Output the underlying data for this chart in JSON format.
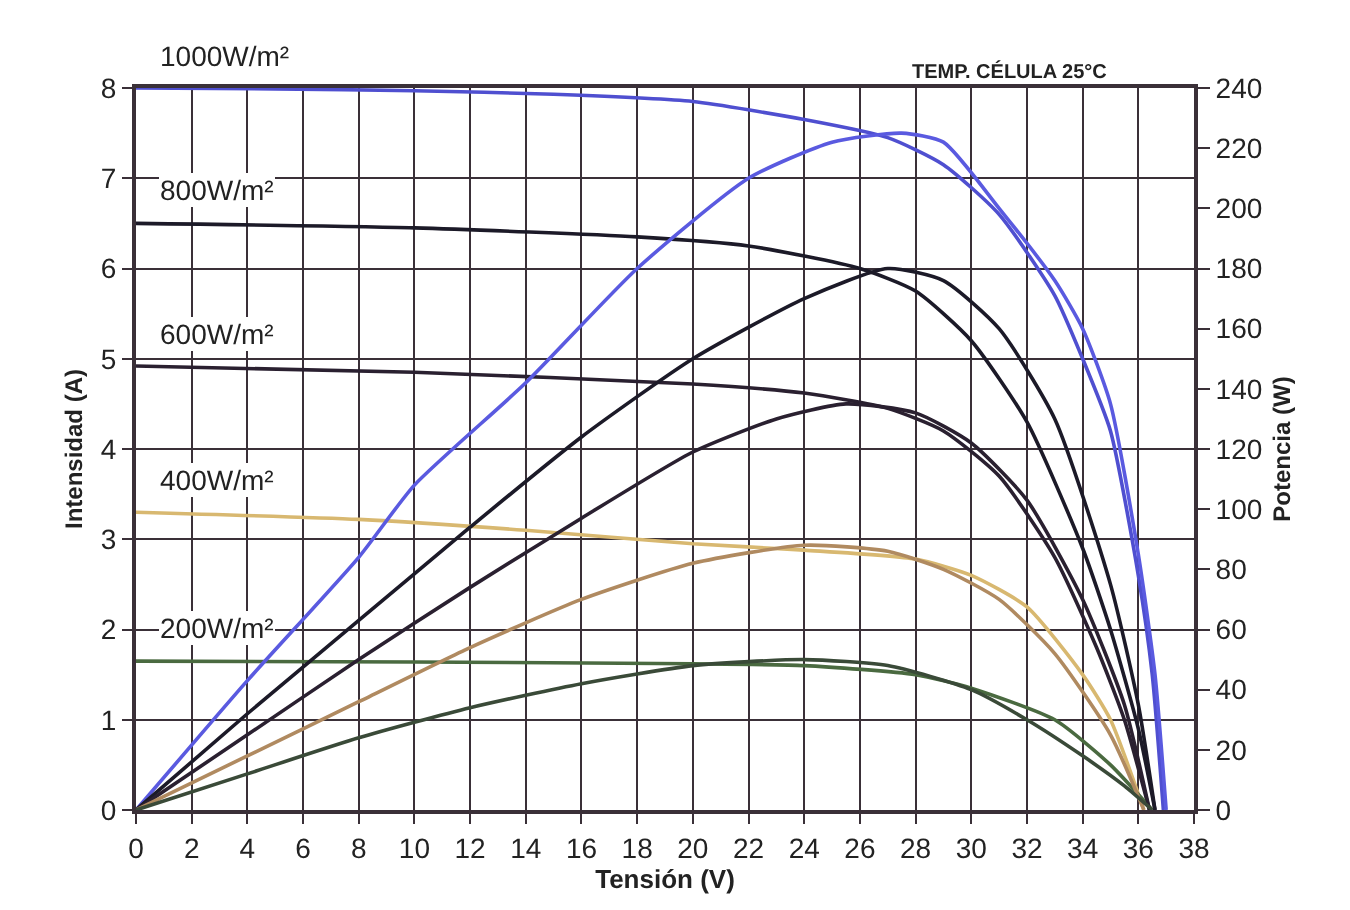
{
  "chart_data": {
    "type": "line",
    "title": "TEMP. CÉLULA 25°C",
    "xlabel": "Tensión (V)",
    "ylabel": "Intensidad (A)",
    "y2label": "Potencia (W)",
    "xlim": [
      0,
      38
    ],
    "xticks": [
      0,
      2,
      4,
      6,
      8,
      10,
      12,
      14,
      16,
      18,
      20,
      22,
      24,
      26,
      28,
      30,
      32,
      34,
      36,
      38
    ],
    "ylim": [
      0,
      8
    ],
    "yticks": [
      0,
      1,
      2,
      3,
      4,
      5,
      6,
      7,
      8
    ],
    "y2lim": [
      0,
      240
    ],
    "y2ticks": [
      0,
      20,
      40,
      60,
      80,
      100,
      120,
      140,
      160,
      180,
      200,
      220,
      240
    ],
    "grid": true,
    "line_style": "solid",
    "series": [
      {
        "color": "#4f4fd0",
        "x": [
          0,
          5,
          10,
          15,
          20,
          24,
          27,
          29,
          31,
          33,
          34,
          35,
          36,
          36.5,
          36.9
        ],
        "values": [
          8.0,
          7.99,
          7.97,
          7.93,
          7.85,
          7.65,
          7.45,
          7.15,
          6.6,
          5.7,
          5.0,
          4.2,
          2.6,
          1.5,
          0
        ]
      },
      {
        "color": "#5a5ae0",
        "axis": "y2",
        "x": [
          0,
          4,
          8,
          10,
          14,
          18,
          22,
          25,
          27.5,
          29,
          31,
          33,
          34,
          35,
          36,
          36.6,
          37
        ],
        "values": [
          0,
          43,
          84,
          108,
          142,
          180,
          210,
          222,
          225,
          222,
          200,
          176,
          160,
          135,
          85,
          45,
          0
        ]
      },
      {
        "color": "#1c1a28",
        "x": [
          0,
          10,
          18,
          22,
          26,
          28,
          30,
          32,
          34,
          35,
          36,
          36.6
        ],
        "values": [
          6.5,
          6.45,
          6.35,
          6.25,
          6.0,
          5.75,
          5.2,
          4.3,
          2.9,
          2.0,
          0.9,
          0
        ]
      },
      {
        "color": "#1c1a28",
        "axis": "y2",
        "x": [
          0,
          4,
          8,
          12,
          16,
          20,
          24,
          27,
          29,
          31,
          33,
          35,
          36,
          36.6
        ],
        "values": [
          0,
          32,
          63,
          94,
          124,
          150,
          170,
          180,
          176,
          160,
          130,
          75,
          35,
          0
        ]
      },
      {
        "color": "#2a2030",
        "x": [
          0,
          10,
          20,
          24,
          27,
          29,
          31,
          33,
          34.5,
          35.5,
          36.4
        ],
        "values": [
          4.92,
          4.85,
          4.72,
          4.62,
          4.45,
          4.2,
          3.7,
          2.8,
          1.8,
          1.0,
          0
        ]
      },
      {
        "color": "#2a2030",
        "axis": "y2",
        "x": [
          0,
          4,
          8,
          12,
          16,
          20,
          23,
          25.5,
          28,
          30,
          32,
          34,
          35.5,
          36.4
        ],
        "values": [
          0,
          25,
          50,
          74,
          97,
          119,
          130,
          135,
          132,
          122,
          103,
          70,
          35,
          0
        ]
      },
      {
        "color": "#d8b870",
        "x": [
          0,
          8,
          14,
          20,
          24,
          28,
          30,
          32,
          34,
          35,
          36.2
        ],
        "values": [
          3.3,
          3.22,
          3.1,
          2.95,
          2.88,
          2.78,
          2.6,
          2.25,
          1.5,
          1.0,
          0
        ]
      },
      {
        "color": "#b08a60",
        "axis": "y2",
        "x": [
          0,
          4,
          8,
          12,
          16,
          20,
          24,
          27,
          29,
          31,
          33,
          35,
          36.2
        ],
        "values": [
          0,
          18,
          36,
          54,
          70,
          82,
          88,
          86,
          80,
          70,
          52,
          25,
          0
        ]
      },
      {
        "color": "#4a6a40",
        "x": [
          0,
          10,
          20,
          24,
          28,
          30,
          33,
          35,
          36.5
        ],
        "values": [
          1.65,
          1.64,
          1.62,
          1.6,
          1.5,
          1.35,
          1.0,
          0.5,
          0
        ]
      },
      {
        "color": "#3a4a38",
        "axis": "y2",
        "x": [
          0,
          4,
          8,
          12,
          16,
          20,
          24,
          27,
          30,
          32,
          34,
          35.5,
          36.5
        ],
        "values": [
          0,
          12,
          24,
          34,
          42,
          48,
          50,
          48,
          40,
          30,
          18,
          8,
          0
        ]
      }
    ],
    "annotations": [
      "1000W/m²",
      "800W/m²",
      "600W/m²",
      "400W/m²",
      "200W/m²"
    ]
  }
}
